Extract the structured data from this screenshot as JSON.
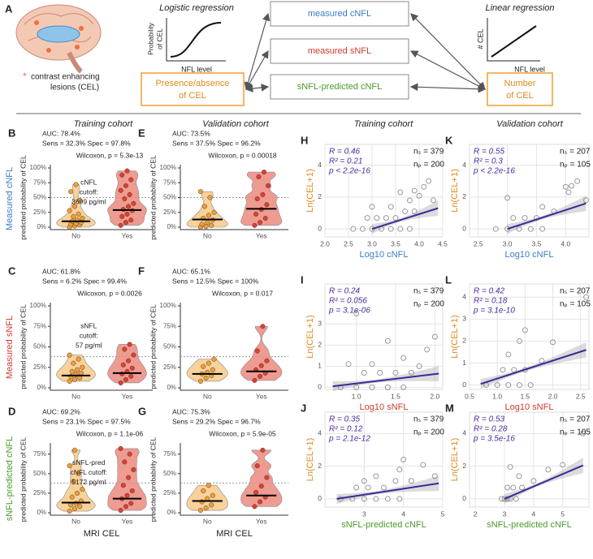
{
  "diagram": {
    "letter": "A",
    "asterisk": "*",
    "legend": [
      "contrast enhancing",
      "lesions (CEL)"
    ],
    "logistic": {
      "title": "Logistic regression",
      "ylabel": [
        "Probability",
        "of CEL"
      ],
      "xlabel": "NFL level"
    },
    "linear": {
      "title": "Linear regression",
      "ylabel": "# CEL",
      "xlabel": "NFL level"
    },
    "boxes": [
      "measured cNFL",
      "measured sNFL",
      "sNFL-predicted cNFL"
    ],
    "left_box": [
      "Presence/absence",
      "of CEL"
    ],
    "right_box": [
      "Number",
      "of CEL"
    ]
  },
  "row_labels": [
    "Measured cNFL",
    "Measured sNFL",
    "sNFL-predicted cNFL"
  ],
  "column_titles": [
    "Training cohort",
    "Validation cohort",
    "Training cohort",
    "Validation cohort"
  ],
  "chart_data": [
    {
      "type": "violin",
      "panel": "B",
      "stats": [
        "AUC: 78.4%",
        "Sens = 32.3% Spec = 97.8%",
        "Wilcoxon, p = 5.3e-13"
      ],
      "annotation": [
        "cNFL",
        "cutoff:",
        "3699 pg/ml"
      ],
      "ylabel": "predicted probability of CEL",
      "categories": [
        "No",
        "Yes"
      ],
      "points": [
        [
          0,
          2,
          4,
          5,
          6,
          8,
          10,
          12,
          15,
          18,
          22,
          28,
          35,
          45,
          60,
          72
        ],
        [
          3,
          8,
          12,
          18,
          22,
          28,
          30,
          35,
          40,
          48,
          55,
          62,
          70,
          80,
          88,
          95
        ]
      ],
      "medians": [
        10,
        29
      ],
      "cutoff": 50,
      "ylim": [
        0,
        100
      ],
      "yticks": [
        {
          "value": 0,
          "label": "0%"
        },
        {
          "value": 25,
          "label": "25%"
        },
        {
          "value": 50,
          "label": "50%"
        },
        {
          "value": 75,
          "label": "75%"
        },
        {
          "value": 100,
          "label": "100%"
        }
      ]
    },
    {
      "type": "violin",
      "panel": "E",
      "stats": [
        "AUC: 73.5%",
        "Sens = 37.5% Spec = 96.2%",
        "Wilcoxon, p = 0.00018"
      ],
      "ylabel": "predicted probability of CEL",
      "categories": [
        "No",
        "Yes"
      ],
      "points": [
        [
          0,
          1,
          3,
          5,
          8,
          12,
          15,
          20,
          25,
          35,
          50,
          60
        ],
        [
          3,
          8,
          15,
          22,
          30,
          38,
          48,
          55,
          70,
          85,
          93
        ]
      ],
      "medians": [
        13,
        31
      ],
      "cutoff": 50,
      "ylim": [
        0,
        100
      ],
      "yticks": [
        {
          "value": 0,
          "label": "0%"
        },
        {
          "value": 25,
          "label": "25%"
        },
        {
          "value": 50,
          "label": "50%"
        },
        {
          "value": 75,
          "label": "75%"
        },
        {
          "value": 100,
          "label": "100%"
        }
      ]
    },
    {
      "type": "scatter",
      "panel": "H",
      "stats": [
        "R = 0.46",
        "R² = 0.21",
        "p < 2.2e-16"
      ],
      "counts": [
        "nₛ = 379",
        "nₚ = 200"
      ],
      "xlabel": "Log10 cNFL",
      "xcolor": "#3a7cc7",
      "ylabel": "Ln(CEL+1)",
      "x": [
        2.6,
        2.8,
        3.0,
        3.2,
        3.4,
        3.6,
        3.8,
        2.9,
        3.1,
        3.3,
        3.5,
        3.7,
        3.9,
        3.0,
        3.4,
        3.8,
        4.0,
        3.6,
        4.1,
        4.2,
        3.9,
        4.3
      ],
      "y": [
        0,
        0,
        0,
        0,
        0,
        0,
        0,
        0.69,
        0.69,
        0.69,
        0.69,
        1.1,
        1.1,
        1.39,
        1.39,
        1.79,
        2.08,
        2.3,
        2.64,
        3.0,
        2.4,
        1.8
      ],
      "fit": {
        "x": [
          3.0,
          4.4
        ],
        "y": [
          0,
          1.3
        ]
      },
      "xlim": [
        2.0,
        4.5
      ],
      "xticks": [
        {
          "value": 2,
          "label": "2.0"
        },
        2.5,
        {
          "value": 3,
          "label": "3.0"
        },
        3.5,
        {
          "value": 4,
          "label": "4.0"
        },
        4.5
      ],
      "ylim": [
        -0.5,
        5.3
      ],
      "yticks": [
        0,
        2,
        4
      ]
    },
    {
      "type": "scatter",
      "panel": "K",
      "stats": [
        "R = 0.55",
        "R² = 0.3",
        "p < 2.2e-16"
      ],
      "counts": [
        "nₛ = 207",
        "nₚ = 105"
      ],
      "xlabel": "Log10 cNFL",
      "xcolor": "#3a7cc7",
      "ylabel": "Ln(CEL+1)",
      "x": [
        2.8,
        3.0,
        3.2,
        3.4,
        3.6,
        3.1,
        3.3,
        3.5,
        3.8,
        3.0,
        3.6,
        4.0,
        4.2,
        4.35,
        4.05,
        4.1
      ],
      "y": [
        0,
        0,
        0,
        0,
        0,
        0.69,
        0.69,
        0.69,
        1.1,
        1.95,
        1.39,
        2.64,
        3.0,
        1.8,
        2.3,
        2.7
      ],
      "fit": {
        "x": [
          3.0,
          4.35
        ],
        "y": [
          0,
          1.6
        ]
      },
      "xlim": [
        2.35,
        4.4
      ],
      "xticks": [
        2.5,
        {
          "value": 3,
          "label": "3.0"
        },
        3.5,
        {
          "value": 4,
          "label": "4.0"
        }
      ],
      "ylim": [
        -0.5,
        5.3
      ],
      "yticks": [
        0,
        2,
        4
      ]
    },
    {
      "type": "violin",
      "panel": "C",
      "stats": [
        "AUC: 61.8%",
        "Sens = 6.2% Spec = 99.4%",
        "Wilcoxon, p = 0.0026"
      ],
      "annotation": [
        "sNFL",
        "cutoff:",
        "57 pg/ml"
      ],
      "ylabel": "predicted probability of CEL",
      "categories": [
        "No",
        "Yes"
      ],
      "points": [
        [
          8,
          10,
          12,
          14,
          16,
          18,
          20,
          22,
          25,
          30,
          35,
          40
        ],
        [
          6,
          10,
          14,
          17,
          20,
          24,
          28,
          33,
          40,
          47,
          53
        ]
      ],
      "medians": [
        15,
        18
      ],
      "cutoff": 38,
      "ylim": [
        0,
        100
      ],
      "yticks": [
        {
          "value": 0,
          "label": "0%"
        },
        {
          "value": 25,
          "label": "25%"
        },
        {
          "value": 50,
          "label": "50%"
        },
        {
          "value": 75,
          "label": "75%"
        },
        {
          "value": 100,
          "label": "100%"
        }
      ]
    },
    {
      "type": "violin",
      "panel": "F",
      "stats": [
        "AUC: 65.1%",
        "Sens = 12.5% Spec = 100%",
        "Wilcoxon, p = 0.017"
      ],
      "ylabel": "predicted probability of CEL",
      "categories": [
        "No",
        "Yes"
      ],
      "points": [
        [
          8,
          12,
          15,
          17,
          19,
          22,
          26,
          30,
          35
        ],
        [
          9,
          14,
          18,
          22,
          27,
          33,
          45,
          75
        ]
      ],
      "medians": [
        17,
        20
      ],
      "cutoff": 38,
      "ylim": [
        0,
        100
      ],
      "yticks": [
        {
          "value": 0,
          "label": "0%"
        },
        {
          "value": 25,
          "label": "25%"
        },
        {
          "value": 50,
          "label": "50%"
        },
        {
          "value": 75,
          "label": "75%"
        },
        {
          "value": 100,
          "label": "100%"
        }
      ]
    },
    {
      "type": "scatter",
      "panel": "I",
      "stats": [
        "R = 0.24",
        "R² = 0.056",
        "p = 3.1e-06"
      ],
      "counts": [
        "nₛ = 379",
        "nₚ = 200"
      ],
      "xlabel": "Log10 sNFL",
      "xcolor": "#d03a2f",
      "ylabel": "Ln(CEL+1)",
      "x": [
        0.8,
        1.0,
        1.2,
        1.4,
        1.6,
        1.1,
        1.3,
        1.5,
        1.7,
        0.9,
        1.2,
        1.6,
        1.9,
        2.0,
        1.4,
        1.8,
        1.0
      ],
      "y": [
        0,
        0,
        0,
        0,
        0,
        0.69,
        0.69,
        0.69,
        0.69,
        1.1,
        1.1,
        1.39,
        1.79,
        2.4,
        2.2,
        1.0,
        3.5
      ],
      "fit": {
        "x": [
          0.7,
          2.05
        ],
        "y": [
          0.05,
          0.65
        ]
      },
      "xlim": [
        0.6,
        2.1
      ],
      "xticks": [
        {
          "value": 1,
          "label": "1.0"
        },
        1.5,
        {
          "value": 2,
          "label": "2.0"
        }
      ],
      "ylim": [
        -0.1,
        4.9
      ],
      "yticks": [
        0,
        1,
        2,
        3
      ]
    },
    {
      "type": "scatter",
      "panel": "L",
      "stats": [
        "R = 0.42",
        "R² = 0.18",
        "p = 3.1e-10"
      ],
      "counts": [
        "nₛ = 207",
        "nₚ = 105"
      ],
      "xlabel": "Log10 sNFL",
      "xcolor": "#d03a2f",
      "ylabel": "Ln(CEL+1)",
      "x": [
        0.8,
        1.0,
        1.2,
        1.4,
        1.6,
        1.1,
        1.3,
        1.5,
        1.2,
        1.4,
        1.8,
        2.0,
        2.6,
        1.5
      ],
      "y": [
        0,
        0,
        0,
        0,
        0,
        0.69,
        0.69,
        0.69,
        1.39,
        2.0,
        1.1,
        1.95,
        4.0,
        2.5
      ],
      "fit": {
        "x": [
          0.7,
          2.6
        ],
        "y": [
          0.05,
          1.6
        ]
      },
      "xlim": [
        0.5,
        2.65
      ],
      "xticks": [
        0.5,
        {
          "value": 1,
          "label": "1.0"
        },
        1.5,
        {
          "value": 2,
          "label": "2.0"
        },
        2.5
      ],
      "ylim": [
        -0.2,
        4.6
      ],
      "yticks": [
        0,
        1,
        2,
        3,
        4
      ]
    },
    {
      "type": "violin",
      "panel": "D",
      "stats": [
        "AUC: 69.2%",
        "Sens = 23.1% Spec = 97.5%",
        "Wilcoxon, p = 1.1e-06"
      ],
      "annotation": [
        "sNFL-pred",
        "cNFL cutoff:",
        "5172 pg/ml"
      ],
      "ylabel": "predicted probability of CEL",
      "xlabel": "MRI CEL",
      "categories": [
        "No",
        "Yes"
      ],
      "points": [
        [
          2,
          5,
          8,
          10,
          12,
          15,
          20,
          25,
          30,
          40,
          50,
          60,
          80
        ],
        [
          3,
          8,
          12,
          18,
          22,
          28,
          35,
          45,
          55,
          65,
          75,
          82
        ]
      ],
      "medians": [
        13,
        18
      ],
      "cutoff": 38,
      "ylim": [
        0,
        85
      ],
      "yticks": [
        {
          "value": 0,
          "label": "0%"
        },
        {
          "value": 25,
          "label": "25%"
        },
        {
          "value": 50,
          "label": "50%"
        },
        {
          "value": 75,
          "label": "75%"
        }
      ]
    },
    {
      "type": "violin",
      "panel": "G",
      "stats": [
        "AUC: 75.3%",
        "Sens = 29.2% Spec = 96.7%",
        "Wilcoxon, p = 5.9e-05"
      ],
      "ylabel": "predicted probability of CEL",
      "xlabel": "MRI CEL",
      "categories": [
        "No",
        "Yes"
      ],
      "points": [
        [
          3,
          6,
          10,
          14,
          18,
          22,
          28,
          35
        ],
        [
          8,
          14,
          20,
          26,
          34,
          45,
          60,
          80
        ]
      ],
      "medians": [
        15,
        22
      ],
      "cutoff": 38,
      "ylim": [
        0,
        85
      ],
      "yticks": [
        {
          "value": 0,
          "label": "0%"
        },
        {
          "value": 25,
          "label": "25%"
        },
        {
          "value": 50,
          "label": "50%"
        },
        {
          "value": 75,
          "label": "75%"
        }
      ]
    },
    {
      "type": "scatter",
      "panel": "J",
      "stats": [
        "R = 0.35",
        "R² = 0.12",
        "p = 2.1e-12"
      ],
      "counts": [
        "nₛ = 379",
        "nₚ = 200"
      ],
      "xlabel": "sNFL-predicted cNFL",
      "xcolor": "#4a9a2a",
      "ylabel": "Ln(CEL+1)",
      "x": [
        2.4,
        2.7,
        3.0,
        3.3,
        3.6,
        3.9,
        2.8,
        3.1,
        3.5,
        3.8,
        4.2,
        3.3,
        3.9,
        4.5,
        4.8,
        3.0,
        4.0
      ],
      "y": [
        0,
        0,
        0,
        0,
        0,
        0,
        0.69,
        0.69,
        0.69,
        1.1,
        1.1,
        1.39,
        1.79,
        2.08,
        1.39,
        1.1,
        2.4
      ],
      "fit": {
        "x": [
          2.3,
          4.9
        ],
        "y": [
          0,
          0.95
        ]
      },
      "xlim": [
        2,
        5
      ],
      "xticks": [
        3,
        4,
        5
      ],
      "ylim": [
        -0.5,
        5.3
      ],
      "yticks": [
        0,
        2,
        4
      ]
    },
    {
      "type": "scatter",
      "panel": "M",
      "stats": [
        "R = 0.53",
        "R² = 0.28",
        "p = 3.5e-16"
      ],
      "counts": [
        "nₛ = 207",
        "nₚ = 105"
      ],
      "xlabel": "sNFL-predicted cNFL",
      "xcolor": "#4a9a2a",
      "ylabel": "Ln(CEL+1)",
      "x": [
        2.9,
        3.0,
        3.1,
        3.2,
        3.4,
        3.1,
        3.3,
        3.6,
        4.0,
        3.5,
        4.5,
        5.0,
        5.7,
        3.2
      ],
      "y": [
        0,
        0,
        0,
        0,
        0,
        0.69,
        0.69,
        0.69,
        1.1,
        1.39,
        1.79,
        2.08,
        4.0,
        1.95
      ],
      "fit": {
        "x": [
          3.0,
          5.7
        ],
        "y": [
          0,
          2.05
        ]
      },
      "xlim": [
        1.8,
        5.9
      ],
      "xticks": [
        2,
        3,
        4,
        5
      ],
      "ylim": [
        -0.5,
        5.3
      ],
      "yticks": [
        0,
        2,
        4
      ]
    }
  ]
}
